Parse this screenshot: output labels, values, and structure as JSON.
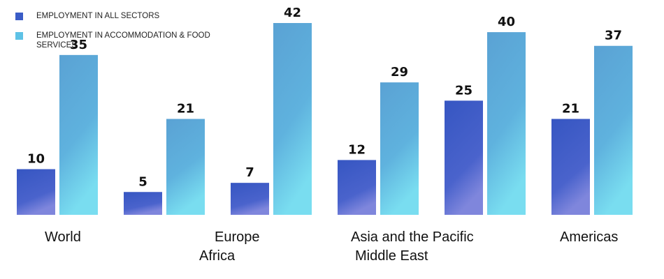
{
  "chart_data": {
    "type": "bar",
    "categories": [
      "World",
      "Africa",
      "Europe",
      "Middle East",
      "Asia and the Pacific",
      "Americas"
    ],
    "series": [
      {
        "name": "EMPLOYMENT IN ALL SECTORS",
        "color": "#3a5cc7",
        "values": [
          10,
          5,
          7,
          12,
          25,
          21
        ]
      },
      {
        "name": "EMPLOYMENT IN ACCOMMODATION  & FOOD SERVICES",
        "color": "#5ba6d6",
        "values": [
          35,
          21,
          42,
          29,
          40,
          37
        ]
      }
    ],
    "ylim": [
      0,
      42
    ],
    "legend": "top-left",
    "grid": false
  }
}
